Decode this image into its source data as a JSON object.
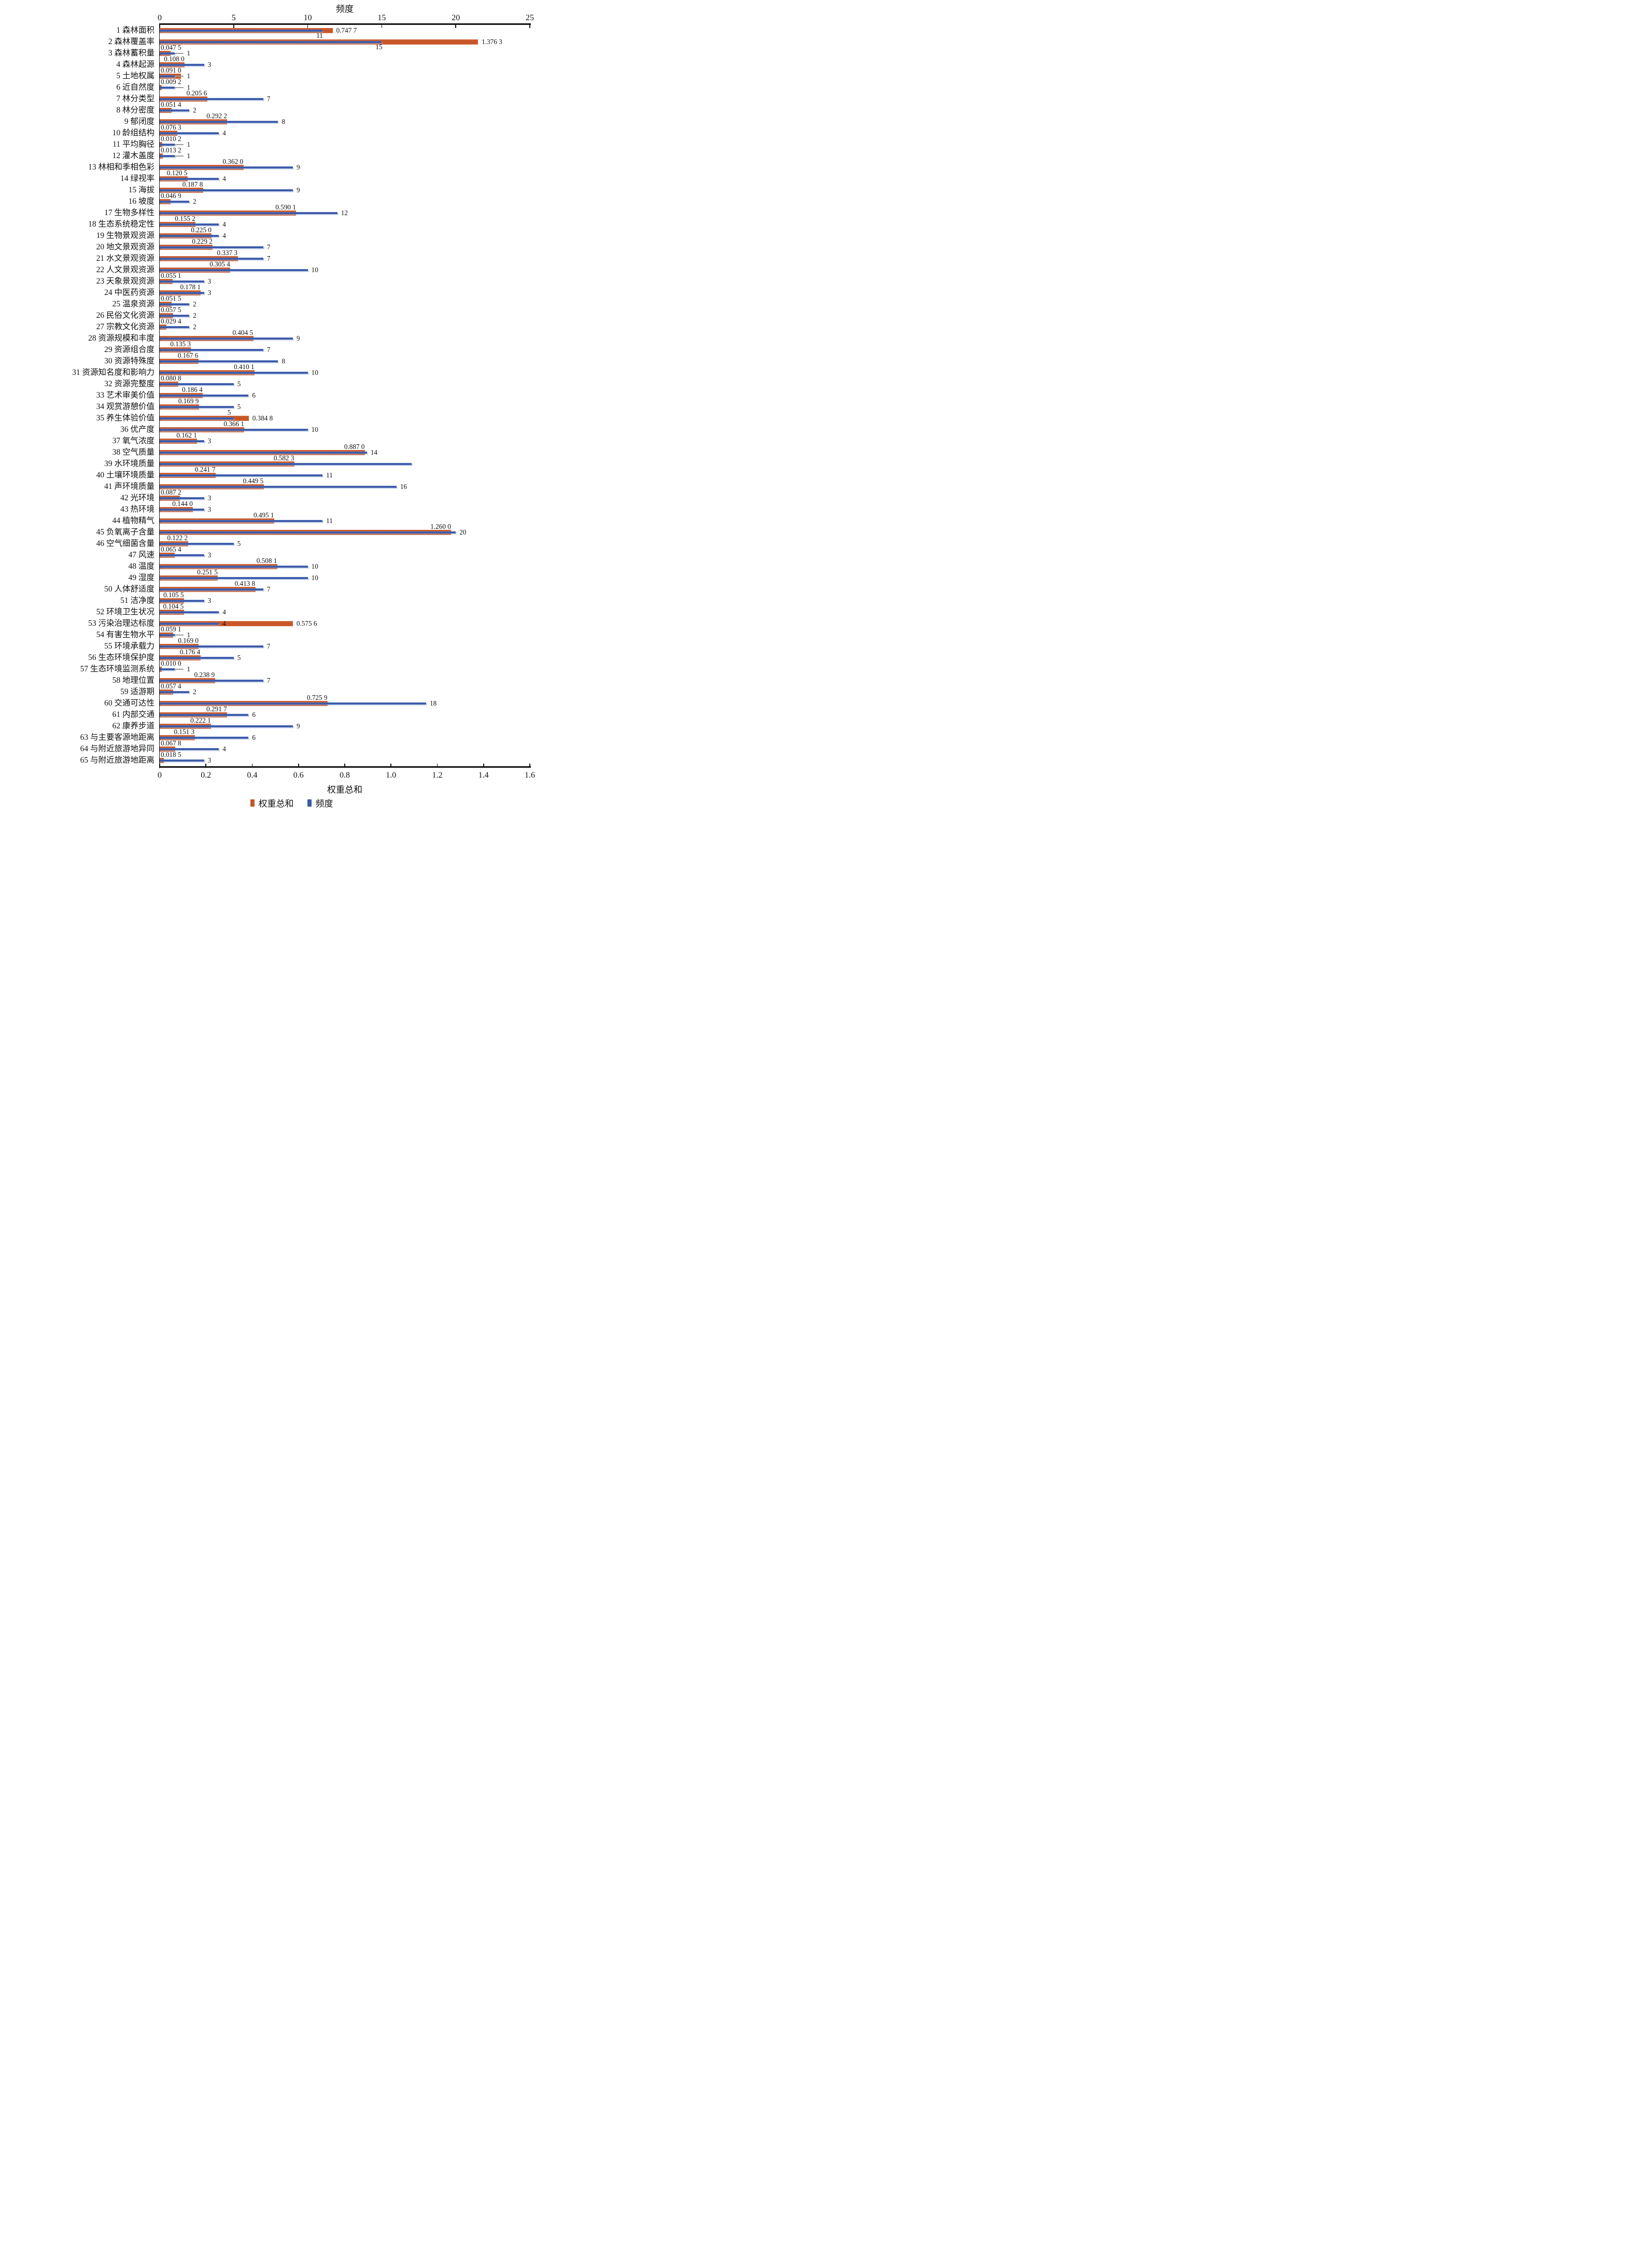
{
  "figure": {
    "background": "#ffffff",
    "text_color": "#111111"
  },
  "chart_data": {
    "type": "bar",
    "orientation": "horizontal",
    "grid": "off",
    "top_axis": {
      "label": "频度",
      "ticks": [
        0,
        5,
        10,
        15,
        20,
        25
      ],
      "range": [
        0,
        25
      ]
    },
    "bottom_axis": {
      "label": "权重总和",
      "ticks": [
        "0",
        "0.2",
        "0.4",
        "0.6",
        "0.8",
        "1.0",
        "1.2",
        "1.4",
        "1.6"
      ],
      "range": [
        0,
        1.6
      ]
    },
    "legend": {
      "position": "bottom",
      "items": [
        {
          "name": "权重总和",
          "color": "#c75628"
        },
        {
          "name": "频度",
          "color": "#3a59a8"
        }
      ]
    },
    "categories": [
      "1 森林面积",
      "2 森林覆盖率",
      "3 森林蓄积量",
      "4 森林起源",
      "5 土地权属",
      "6 近自然度",
      "7 林分类型",
      "8 林分密度",
      "9 郁闭度",
      "10 龄组结构",
      "11 平均胸径",
      "12 灌木盖度",
      "13 林相和季相色彩",
      "14 绿视率",
      "15 海拔",
      "16 坡度",
      "17 生物多样性",
      "18 生态系统稳定性",
      "19 生物景观资源",
      "20 地文景观资源",
      "21 水文景观资源",
      "22 人文景观资源",
      "23 天象景观资源",
      "24 中医药资源",
      "25 温泉资源",
      "26 民俗文化资源",
      "27 宗教文化资源",
      "28 资源规模和丰度",
      "29 资源组合度",
      "30 资源特殊度",
      "31 资源知名度和影响力",
      "32 资源完整度",
      "33 艺术审美价值",
      "34 观赏游憩价值",
      "35 养生体验价值",
      "36 优产度",
      "37 氧气浓度",
      "38 空气质量",
      "39 水环境质量",
      "40 土壤环境质量",
      "41 声环境质量",
      "42 光环境",
      "43 热环境",
      "44 植物精气",
      "45 负氧离子含量",
      "46 空气细菌含量",
      "47 风速",
      "48 温度",
      "49 湿度",
      "50 人体舒适度",
      "51 洁净度",
      "52 环境卫生状况",
      "53 污染治理达标度",
      "54 有害生物水平",
      "55 环境承载力",
      "56 生态环境保护度",
      "57 生态环境监测系统",
      "58 地理位置",
      "59 适游期",
      "60 交通可达性",
      "61 内部交通",
      "62 康养步道",
      "63 与主要客源地距离",
      "64 与附近旅游地异同",
      "65 与附近旅游地距离"
    ],
    "series": [
      {
        "name": "权重总和",
        "axis": "bottom",
        "color": "#c75628",
        "values": [
          0.7477,
          1.3763,
          0.0475,
          0.108,
          0.091,
          0.0092,
          0.2056,
          0.0514,
          0.2922,
          0.0763,
          0.0102,
          0.0132,
          0.362,
          0.1205,
          0.1878,
          0.0469,
          0.5901,
          0.1552,
          0.225,
          0.2292,
          0.3373,
          0.3054,
          0.0551,
          0.1781,
          0.0515,
          0.0575,
          0.0294,
          0.4045,
          0.1353,
          0.1676,
          0.4101,
          0.0808,
          0.1864,
          0.1699,
          0.3848,
          0.3661,
          0.1621,
          0.887,
          0.5823,
          0.2417,
          0.4495,
          0.0872,
          0.144,
          0.4951,
          1.26,
          0.1222,
          0.0654,
          0.5081,
          0.2515,
          0.4138,
          0.1055,
          0.1045,
          0.5756,
          0.0591,
          0.169,
          0.1764,
          0.01,
          0.2389,
          0.0574,
          0.7259,
          0.2917,
          0.2221,
          0.1513,
          0.0678,
          0.0185
        ],
        "labels": [
          "0.747 7",
          "1.376 3",
          "0.047 5",
          "0.108 0",
          "0.091 0",
          "0.009 2",
          "0.205 6",
          "0.051 4",
          "0.292 2",
          "0.076 3",
          "0.010 2",
          "0.013 2",
          "0.362 0",
          "0.120 5",
          "0.187 8",
          "0.046 9",
          "0.590 1",
          "0.155 2",
          "0.225 0",
          "0.229 2",
          "0.337 3",
          "0.305 4",
          "0.055 1",
          "0.178 1",
          "0.051 5",
          "0.057 5",
          "0.029 4",
          "0.404 5",
          "0.135 3",
          "0.167 6",
          "0.410 1",
          "0.080 8",
          "0.186 4",
          "0.169 9",
          "0.384 8",
          "0.366 1",
          "0.162 1",
          "0.887 0",
          "0.582 3",
          "0.241 7",
          "0.449 5",
          "0.087 2",
          "0.144 0",
          "0.495 1",
          "1.260 0",
          "0.122 2",
          "0.065 4",
          "0.508 1",
          "0.251 5",
          "0.413 8",
          "0.105 5",
          "0.104 5",
          "0.575 6",
          "0.059 1",
          "0.169 0",
          "0.176 4",
          "0.010 0",
          "0.238 9",
          "0.057 4",
          "0.725 9",
          "0.291 7",
          "0.222 1",
          "0.151 3",
          "0.067 8",
          "0.018 5"
        ],
        "label_pos": [
          "right",
          "right",
          "above",
          "above",
          "above",
          "above",
          "above",
          "above",
          "above",
          "above",
          "above",
          "above",
          "above",
          "above",
          "above",
          "above",
          "above",
          "above",
          "above",
          "above",
          "above",
          "above",
          "above",
          "above",
          "above",
          "above",
          "above",
          "above",
          "above",
          "above",
          "above",
          "above",
          "above",
          "above",
          "right",
          "above",
          "above",
          "above",
          "above",
          "above",
          "above",
          "above",
          "above",
          "above",
          "above",
          "above",
          "above",
          "above",
          "above",
          "above",
          "above",
          "above",
          "right",
          "above",
          "above",
          "above",
          "above",
          "above",
          "above",
          "above",
          "above",
          "above",
          "above",
          "above",
          "above"
        ]
      },
      {
        "name": "频度",
        "axis": "top",
        "color": "#3a59a8",
        "values": [
          11,
          15,
          1,
          3,
          1,
          1,
          7,
          2,
          8,
          4,
          1,
          1,
          9,
          4,
          9,
          2,
          12,
          4,
          4,
          7,
          7,
          10,
          3,
          3,
          2,
          2,
          2,
          9,
          7,
          8,
          10,
          5,
          6,
          5,
          5,
          10,
          3,
          14,
          17,
          11,
          16,
          3,
          3,
          11,
          20,
          5,
          3,
          10,
          10,
          7,
          3,
          4,
          4,
          1,
          7,
          5,
          1,
          7,
          2,
          18,
          6,
          9,
          6,
          4,
          3
        ],
        "labels": [
          "11",
          "15",
          "1",
          "3",
          "1",
          "1",
          "7",
          "2",
          "8",
          "4",
          "1",
          "1",
          "9",
          "4",
          "9",
          "2",
          "12",
          "4",
          "4",
          "7",
          "7",
          "10",
          "3",
          "3",
          "2",
          "2",
          "2",
          "9",
          "7",
          "8",
          "10",
          "5",
          "6",
          "5",
          "5",
          "10",
          "3",
          "14",
          "",
          "11",
          "16",
          "3",
          "3",
          "11",
          "20",
          "5",
          "3",
          "10",
          "10",
          "7",
          "3",
          "4",
          "4",
          "1",
          "7",
          "5",
          "1",
          "7",
          "2",
          "18",
          "6",
          "9",
          "6",
          "4",
          "3"
        ],
        "label_pos": [
          "below",
          "below",
          "right",
          "right",
          "right",
          "right",
          "right",
          "right",
          "right",
          "right",
          "right",
          "right",
          "right",
          "right",
          "right",
          "right",
          "right",
          "right",
          "right",
          "right",
          "right",
          "right",
          "right",
          "right",
          "right",
          "right",
          "right",
          "right",
          "right",
          "right",
          "right",
          "right",
          "right",
          "right",
          "above",
          "right",
          "right",
          "right",
          "none",
          "right",
          "right",
          "right",
          "right",
          "right",
          "right",
          "right",
          "right",
          "right",
          "right",
          "right",
          "right",
          "right",
          "right",
          "right",
          "right",
          "right",
          "right",
          "right",
          "right",
          "right",
          "right",
          "right",
          "right",
          "right",
          "right"
        ],
        "whisker": [
          false,
          false,
          true,
          false,
          true,
          true,
          false,
          false,
          false,
          false,
          true,
          true,
          false,
          false,
          false,
          false,
          false,
          false,
          false,
          false,
          false,
          false,
          false,
          false,
          false,
          false,
          false,
          false,
          false,
          false,
          false,
          false,
          false,
          false,
          false,
          false,
          false,
          false,
          false,
          false,
          false,
          false,
          false,
          false,
          false,
          false,
          false,
          false,
          false,
          false,
          false,
          false,
          false,
          true,
          false,
          false,
          true,
          false,
          false,
          false,
          false,
          false,
          false,
          false,
          false
        ]
      }
    ]
  }
}
